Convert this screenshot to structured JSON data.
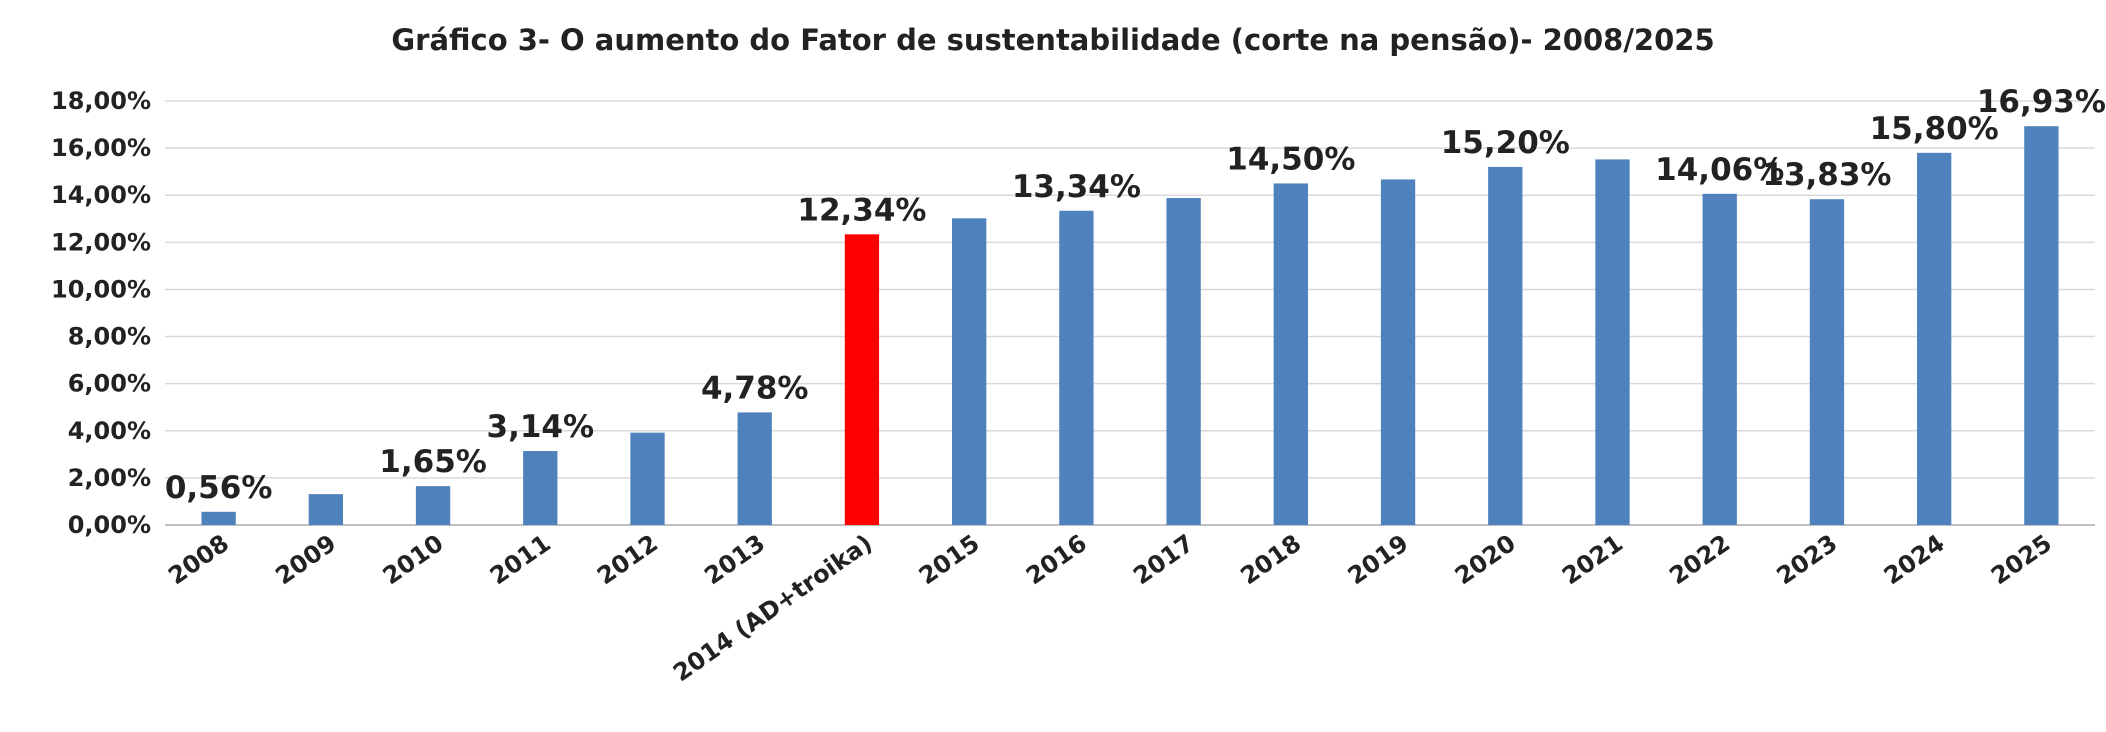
{
  "chart_data": {
    "type": "bar",
    "title": "Gráfico 3- O aumento do Fator de sustentabilidade  (corte na pensão)- 2008/2025",
    "xlabel": "",
    "ylabel": "",
    "ylim": [
      0,
      18
    ],
    "yticks": [
      "0,00%",
      "2,00%",
      "4,00%",
      "6,00%",
      "8,00%",
      "10,00%",
      "12,00%",
      "14,00%",
      "16,00%",
      "18,00%"
    ],
    "grid": true,
    "legend": "none",
    "categories": [
      "2008",
      "2009",
      "2010",
      "2011",
      "2012",
      "2013",
      "2014 (AD+troika)",
      "2015",
      "2016",
      "2017",
      "2018",
      "2019",
      "2020",
      "2021",
      "2022",
      "2023",
      "2024",
      "2025"
    ],
    "values": [
      0.56,
      1.31,
      1.65,
      3.14,
      3.92,
      4.78,
      12.34,
      13.02,
      13.34,
      13.88,
      14.5,
      14.67,
      15.2,
      15.52,
      14.06,
      13.83,
      15.8,
      16.93
    ],
    "data_labels": [
      "0,56%",
      "",
      "1,65%",
      "3,14%",
      "",
      "4,78%",
      "12,34%",
      "",
      "13,34%",
      "",
      "14,50%",
      "",
      "15,20%",
      "",
      "14,06%",
      "13,83%",
      "15,80%",
      "16,93%"
    ],
    "colors": {
      "default": "#4f81bd",
      "highlight": "#ff0000"
    },
    "highlight_index": 6
  }
}
